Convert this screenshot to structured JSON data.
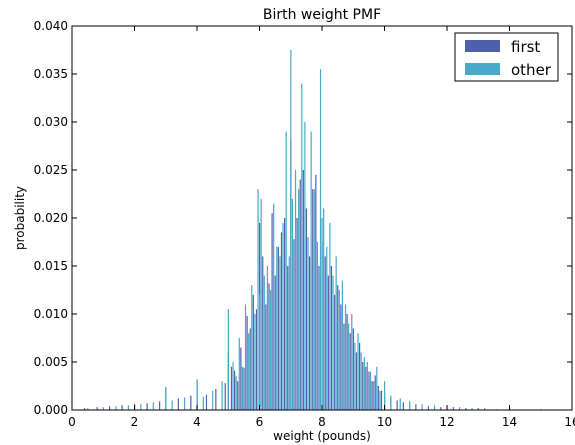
{
  "chart_data": {
    "type": "bar",
    "title": "Birth weight PMF",
    "xlabel": "weight (pounds)",
    "ylabel": "probability",
    "xlim": [
      0,
      16
    ],
    "ylim": [
      0,
      0.04
    ],
    "xticks": [
      "0",
      "2",
      "4",
      "6",
      "8",
      "10",
      "12",
      "14",
      "16"
    ],
    "yticks": [
      "0.000",
      "0.005",
      "0.010",
      "0.015",
      "0.020",
      "0.025",
      "0.030",
      "0.035",
      "0.040"
    ],
    "grid": false,
    "legend_position": "top-right",
    "series": [
      {
        "name": "first",
        "color": "#4f5fb0",
        "x": [
          0.4,
          0.8,
          1.2,
          1.6,
          2.0,
          2.4,
          2.8,
          3.0,
          3.4,
          3.8,
          4.0,
          4.3,
          4.6,
          4.9,
          5.0,
          5.1,
          5.2,
          5.3,
          5.4,
          5.5,
          5.6,
          5.7,
          5.8,
          5.9,
          6.0,
          6.1,
          6.2,
          6.3,
          6.4,
          6.5,
          6.6,
          6.7,
          6.8,
          6.9,
          7.0,
          7.1,
          7.2,
          7.3,
          7.4,
          7.5,
          7.6,
          7.7,
          7.8,
          7.9,
          8.0,
          8.1,
          8.2,
          8.3,
          8.4,
          8.5,
          8.6,
          8.7,
          8.8,
          8.9,
          9.0,
          9.1,
          9.2,
          9.3,
          9.4,
          9.5,
          9.6,
          9.7,
          9.8,
          9.9,
          10.0,
          10.2,
          10.4,
          10.6,
          10.8,
          11.0,
          11.4,
          11.8,
          12.2,
          12.6,
          13.0,
          14.0
        ],
        "values": [
          0.0002,
          0.0003,
          0.0004,
          0.0005,
          0.0006,
          0.0007,
          0.0009,
          0.0022,
          0.0012,
          0.0015,
          0.003,
          0.0016,
          0.0022,
          0.0028,
          0.006,
          0.0045,
          0.0041,
          0.003,
          0.0065,
          0.0044,
          0.0098,
          0.0085,
          0.012,
          0.0105,
          0.0195,
          0.016,
          0.011,
          0.0132,
          0.0205,
          0.014,
          0.017,
          0.0185,
          0.02,
          0.015,
          0.028,
          0.0178,
          0.02,
          0.024,
          0.025,
          0.021,
          0.016,
          0.023,
          0.0245,
          0.015,
          0.0175,
          0.016,
          0.014,
          0.015,
          0.012,
          0.013,
          0.011,
          0.009,
          0.01,
          0.008,
          0.0085,
          0.006,
          0.007,
          0.005,
          0.0045,
          0.004,
          0.003,
          0.0036,
          0.0025,
          0.002,
          0.0018,
          0.0012,
          0.001,
          0.0008,
          0.0007,
          0.0006,
          0.0004,
          0.0003,
          0.0003,
          0.0002,
          0.0002,
          0.0001
        ]
      },
      {
        "name": "other",
        "color": "#46a9c8",
        "x": [
          0.5,
          1.0,
          1.4,
          1.8,
          2.2,
          2.6,
          3.0,
          3.2,
          3.6,
          4.0,
          4.2,
          4.5,
          4.8,
          5.0,
          5.15,
          5.25,
          5.35,
          5.45,
          5.55,
          5.65,
          5.75,
          5.85,
          5.95,
          6.0,
          6.05,
          6.15,
          6.25,
          6.35,
          6.45,
          6.55,
          6.65,
          6.75,
          6.85,
          6.95,
          7.0,
          7.05,
          7.15,
          7.25,
          7.35,
          7.45,
          7.55,
          7.65,
          7.75,
          7.85,
          7.95,
          8.0,
          8.05,
          8.15,
          8.25,
          8.35,
          8.45,
          8.55,
          8.65,
          8.75,
          8.85,
          8.95,
          9.05,
          9.15,
          9.25,
          9.35,
          9.45,
          9.55,
          9.65,
          9.75,
          9.85,
          10.0,
          10.2,
          10.5,
          10.8,
          11.2,
          11.6,
          12.0,
          12.4,
          12.8,
          13.2,
          13.6,
          14.0,
          15.0
        ],
        "values": [
          0.0002,
          0.0003,
          0.0004,
          0.0005,
          0.0006,
          0.0008,
          0.0024,
          0.001,
          0.0013,
          0.0032,
          0.0014,
          0.002,
          0.003,
          0.0105,
          0.005,
          0.0035,
          0.0075,
          0.0045,
          0.011,
          0.008,
          0.013,
          0.01,
          0.023,
          0.012,
          0.022,
          0.014,
          0.015,
          0.0125,
          0.0215,
          0.017,
          0.016,
          0.0195,
          0.029,
          0.016,
          0.0375,
          0.022,
          0.025,
          0.023,
          0.034,
          0.03,
          0.018,
          0.029,
          0.023,
          0.0175,
          0.0355,
          0.02,
          0.021,
          0.017,
          0.0195,
          0.014,
          0.016,
          0.0125,
          0.0135,
          0.011,
          0.009,
          0.01,
          0.007,
          0.008,
          0.006,
          0.0055,
          0.005,
          0.004,
          0.003,
          0.0045,
          0.002,
          0.003,
          0.0015,
          0.0012,
          0.0009,
          0.0006,
          0.0005,
          0.0004,
          0.0003,
          0.0002,
          0.0002,
          0.0001,
          0.0002,
          0.0001
        ]
      }
    ]
  }
}
